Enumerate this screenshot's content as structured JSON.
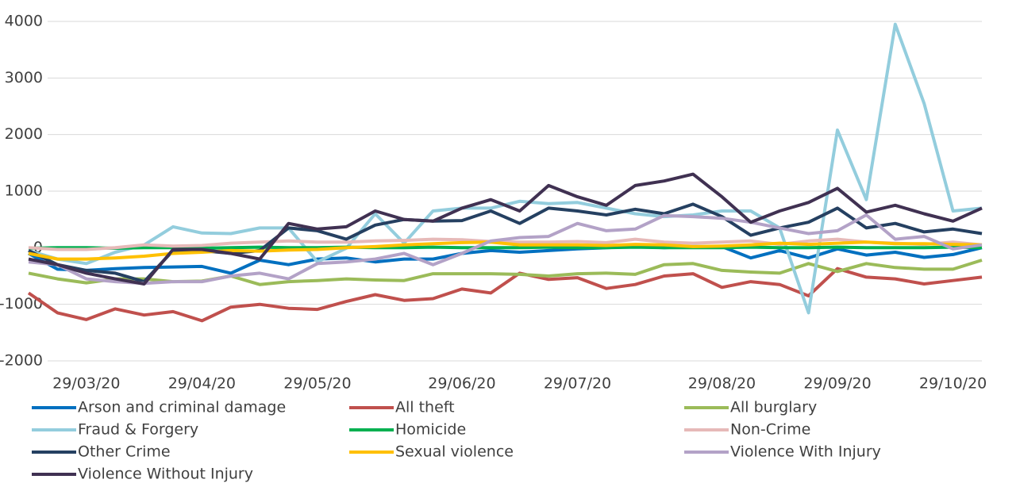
{
  "chart_data": {
    "type": "line",
    "categories": [
      null,
      null,
      "29/03/20",
      null,
      null,
      null,
      "29/04/20",
      null,
      null,
      null,
      "29/05/20",
      null,
      null,
      null,
      null,
      "29/06/20",
      null,
      null,
      null,
      "29/07/20",
      null,
      null,
      null,
      null,
      "29/08/20",
      null,
      null,
      null,
      "29/09/20",
      null,
      null,
      null,
      "29/10/20",
      null
    ],
    "ylim": [
      -2000,
      4000
    ],
    "yticks": [
      -2000,
      -1000,
      0,
      1000,
      2000,
      3000,
      4000
    ],
    "grid": true,
    "legend": "bottom",
    "series": [
      {
        "name": "Arson and criminal damage",
        "color": "#0070c0",
        "values": [
          -100,
          -380,
          -400,
          -370,
          -350,
          -340,
          -330,
          -450,
          -220,
          -300,
          -200,
          -180,
          -250,
          -200,
          -200,
          -100,
          -50,
          -80,
          -50,
          -20,
          0,
          20,
          0,
          20,
          20,
          -180,
          -50,
          -180,
          -20,
          -130,
          -80,
          -170,
          -120,
          0
        ]
      },
      {
        "name": "All theft",
        "color": "#c0504d",
        "values": [
          -800,
          -1150,
          -1270,
          -1080,
          -1190,
          -1130,
          -1290,
          -1050,
          -1000,
          -1070,
          -1090,
          -950,
          -830,
          -930,
          -900,
          -730,
          -800,
          -450,
          -560,
          -530,
          -720,
          -650,
          -500,
          -460,
          -700,
          -600,
          -650,
          -850,
          -370,
          -520,
          -550,
          -640,
          -580,
          -520
        ]
      },
      {
        "name": "All burglary",
        "color": "#9bbb59",
        "values": [
          -450,
          -550,
          -620,
          -550,
          -550,
          -600,
          -590,
          -500,
          -650,
          -600,
          -580,
          -550,
          -570,
          -580,
          -460,
          -460,
          -460,
          -470,
          -500,
          -460,
          -450,
          -470,
          -300,
          -280,
          -400,
          -430,
          -450,
          -280,
          -420,
          -280,
          -350,
          -380,
          -380,
          -220
        ]
      },
      {
        "name": "Fraud & Forgery",
        "color": "#93cddd",
        "values": [
          -50,
          -200,
          -280,
          -80,
          50,
          370,
          260,
          250,
          350,
          350,
          -250,
          -10,
          600,
          80,
          650,
          700,
          700,
          820,
          780,
          800,
          700,
          600,
          550,
          580,
          650,
          650,
          350,
          -1150,
          2080,
          850,
          3950,
          2550,
          650,
          700
        ]
      },
      {
        "name": "Homicide",
        "color": "#00b050",
        "values": [
          -10,
          0,
          0,
          -10,
          0,
          0,
          -10,
          0,
          10,
          0,
          0,
          10,
          0,
          0,
          10,
          0,
          0,
          0,
          10,
          0,
          0,
          10,
          0,
          0,
          0,
          10,
          0,
          0,
          10,
          0,
          0,
          0,
          10,
          0
        ]
      },
      {
        "name": "Non-Crime",
        "color": "#e6b9b8",
        "values": [
          0,
          -30,
          -30,
          0,
          50,
          30,
          40,
          80,
          100,
          120,
          100,
          100,
          120,
          130,
          150,
          140,
          110,
          100,
          100,
          110,
          90,
          150,
          100,
          80,
          100,
          120,
          60,
          120,
          150,
          100,
          80,
          60,
          100,
          50
        ]
      },
      {
        "name": "Other Crime",
        "color": "#254061",
        "values": [
          -50,
          -300,
          -400,
          -450,
          -600,
          -50,
          -50,
          -100,
          -50,
          350,
          300,
          150,
          400,
          500,
          470,
          480,
          650,
          430,
          700,
          650,
          580,
          680,
          600,
          770,
          550,
          220,
          350,
          450,
          700,
          350,
          430,
          280,
          330,
          250
        ]
      },
      {
        "name": "Sexual violence",
        "color": "#ffc000",
        "values": [
          -100,
          -200,
          -200,
          -180,
          -150,
          -100,
          -80,
          -50,
          -60,
          -40,
          -30,
          0,
          20,
          50,
          70,
          90,
          100,
          50,
          50,
          50,
          40,
          60,
          50,
          20,
          30,
          50,
          80,
          60,
          80,
          100,
          70,
          70,
          60,
          50
        ]
      },
      {
        "name": "Violence With Injury",
        "color": "#b3a2c7",
        "values": [
          -250,
          -300,
          -550,
          -600,
          -630,
          -600,
          -600,
          -500,
          -450,
          -550,
          -280,
          -250,
          -200,
          -100,
          -300,
          -100,
          120,
          180,
          200,
          430,
          300,
          330,
          570,
          550,
          520,
          450,
          350,
          250,
          300,
          580,
          150,
          200,
          -20,
          50
        ]
      },
      {
        "name": "Violence Without Injury",
        "color": "#403152",
        "values": [
          -200,
          -300,
          -450,
          -550,
          -640,
          -30,
          -30,
          -100,
          -200,
          430,
          330,
          370,
          650,
          500,
          470,
          700,
          850,
          650,
          1100,
          900,
          750,
          1100,
          1180,
          1300,
          900,
          450,
          650,
          800,
          1050,
          630,
          750,
          600,
          470,
          700
        ]
      }
    ]
  }
}
